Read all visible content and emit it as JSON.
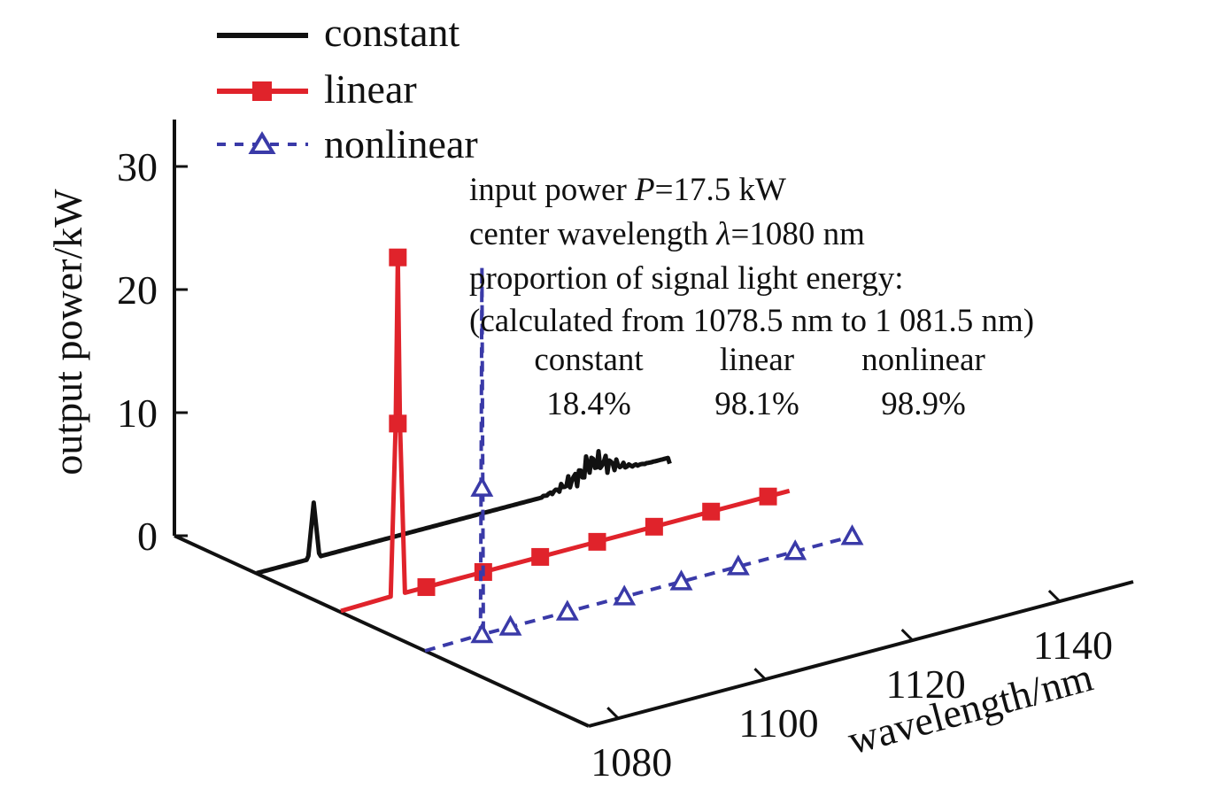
{
  "chart_data": {
    "type": "line",
    "subtype": "3d-waterfall",
    "title": "",
    "xlabel": "wavelength/nm",
    "ylabel": "output power/kW",
    "x_ticks": [
      "1080",
      "1100",
      "1120",
      "1140"
    ],
    "y_ticks": [
      "0",
      "10",
      "20",
      "30"
    ],
    "xlim": [
      1070,
      1150
    ],
    "ylim": [
      0,
      32
    ],
    "legend": {
      "placement": "top-left",
      "entries": [
        {
          "name": "constant",
          "color": "#111111",
          "style": "solid",
          "marker": "none"
        },
        {
          "name": "linear",
          "color": "#e0232b",
          "style": "solid",
          "marker": "square"
        },
        {
          "name": "nonlinear",
          "color": "#3a3aa8",
          "style": "dashed",
          "marker": "triangle"
        }
      ]
    },
    "series": [
      {
        "name": "constant",
        "peak_wavelength": 1080,
        "peak_power": 4.5,
        "x": [
          1072,
          1078,
          1079.5,
          1080,
          1080.5,
          1082,
          1100,
          1112,
          1115,
          1118,
          1120,
          1122,
          1124,
          1126,
          1130
        ],
        "y": [
          0,
          0.3,
          1,
          4.5,
          1,
          0.3,
          0.4,
          0.6,
          1.2,
          1.5,
          2.0,
          1.4,
          1.0,
          0.9,
          0.8
        ]
      },
      {
        "name": "linear",
        "peak_wavelength": 1080,
        "peak_power": 27.5,
        "marker_points_x": [
          1080,
          1080,
          1084,
          1092,
          1100,
          1108,
          1116,
          1124,
          1132
        ],
        "marker_points_y": [
          27.5,
          14,
          0.1,
          0.1,
          0.1,
          0.1,
          0.1,
          0.1,
          0.1
        ],
        "x": [
          1072,
          1079,
          1079.7,
          1080,
          1080.3,
          1081,
          1084,
          1092,
          1100,
          1108,
          1116,
          1124,
          1135
        ],
        "y": [
          0,
          0.1,
          14,
          27.5,
          14,
          0.1,
          0.1,
          0.1,
          0.1,
          0.1,
          0.1,
          0.1,
          0.1
        ]
      },
      {
        "name": "nonlinear",
        "peak_wavelength": 1080,
        "peak_power": 30,
        "marker_points_x": [
          1080,
          1080,
          1084,
          1092,
          1100,
          1108,
          1116,
          1124,
          1132
        ],
        "marker_points_y": [
          12,
          0.1,
          0.1,
          0.1,
          0.1,
          0.1,
          0.1,
          0.1,
          0.1
        ],
        "x": [
          1072,
          1079.8,
          1080,
          1080.2,
          1084,
          1092,
          1100,
          1108,
          1116,
          1124,
          1132
        ],
        "y": [
          0,
          0.1,
          30,
          0.1,
          0.1,
          0.1,
          0.1,
          0.1,
          0.1,
          0.1,
          0.1
        ]
      }
    ],
    "annotations": {
      "lines": [
        "input power P=17.5 kW",
        "center wavelength λ=1080 nm",
        "proportion of signal light energy:",
        "(calculated from 1078.5 nm to 1 081.5 nm)"
      ],
      "input_power_prefix": "input power ",
      "input_power_symbol": "P",
      "input_power_suffix": "=17.5 kW",
      "center_prefix": "center wavelength ",
      "center_symbol": "λ",
      "center_suffix": "=1080 nm",
      "proportion_label": "proportion of signal light energy:",
      "range_label": "(calculated from 1078.5 nm to 1 081.5 nm)",
      "table": [
        {
          "name": "constant",
          "value": "18.4%"
        },
        {
          "name": "linear",
          "value": "98.1%"
        },
        {
          "name": "nonlinear",
          "value": "98.9%"
        }
      ]
    }
  }
}
